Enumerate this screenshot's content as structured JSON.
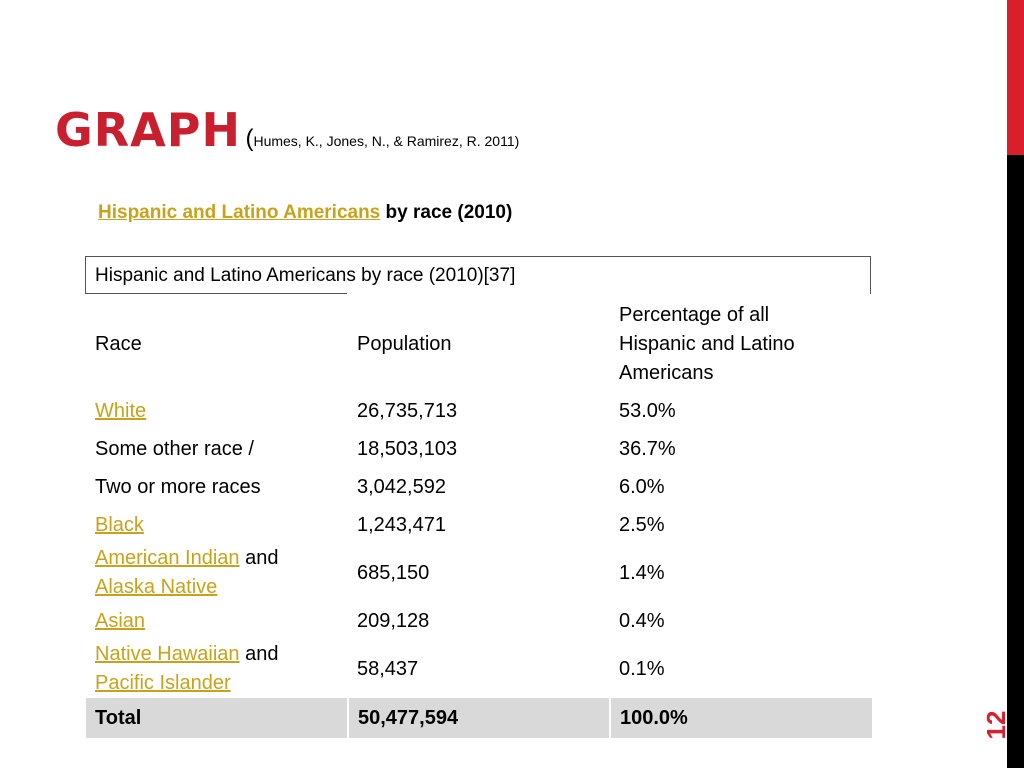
{
  "slide": {
    "title": "GRAPH",
    "citation_open": "(",
    "citation": "Humes, K., Jones, N., & Ramirez, R. 2011)",
    "subtitle_link": "Hispanic and Latino Americans",
    "subtitle_rest": " by race (2010)",
    "slide_number": "12",
    "colors": {
      "accent": "#c8202f",
      "link": "#c9a21c",
      "sidebar_red": "#d81f2a",
      "sidebar_black": "#000000"
    }
  },
  "table": {
    "caption": "Hispanic and Latino Americans by race (2010)[37]",
    "headers": {
      "race": "Race",
      "population": "Population",
      "percent_line1": "Percentage of all",
      "percent_line2": "Hispanic and Latino",
      "percent_line3": "Americans"
    },
    "rows": {
      "white": {
        "race": "White",
        "population": "26,735,713",
        "percent": "53.0%"
      },
      "other": {
        "race": "Some other race /",
        "population": "18,503,103",
        "percent": "36.7%"
      },
      "two": {
        "race": "Two or more races",
        "population": "3,042,592",
        "percent": "6.0%"
      },
      "black": {
        "race": "Black",
        "population": "1,243,471",
        "percent": "2.5%"
      },
      "aian": {
        "race_link1": "American Indian",
        "race_and": " and",
        "race_link2": "Alaska Native",
        "population": "685,150",
        "percent": "1.4%"
      },
      "asian": {
        "race": "Asian",
        "population": "209,128",
        "percent": "0.4%"
      },
      "nhpi": {
        "race_link1": "Native Hawaiian",
        "race_and": " and",
        "race_link2": "Pacific Islander",
        "population": "58,437",
        "percent": "0.1%"
      },
      "total": {
        "race": "Total",
        "population": "50,477,594",
        "percent": "100.0%"
      }
    }
  }
}
